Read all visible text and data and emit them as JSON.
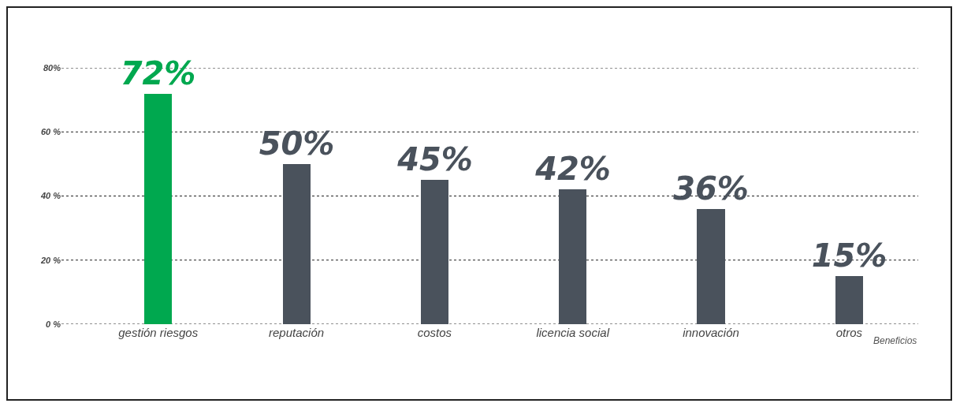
{
  "chart_data": {
    "type": "bar",
    "xlabel": "Beneficios",
    "categories": [
      "gestión riesgos",
      "reputación",
      "costos",
      "licencia social",
      "innovación",
      "otros"
    ],
    "values": [
      72,
      50,
      45,
      42,
      36,
      15
    ],
    "colors": [
      "#00a84f",
      "#4a525c",
      "#4a525c",
      "#4a525c",
      "#4a525c",
      "#4a525c"
    ],
    "value_labels": [
      "72%",
      "50%",
      "45%",
      "42%",
      "36%",
      "15%"
    ],
    "ylim": [
      0,
      80
    ],
    "yticks": [
      {
        "value": 0,
        "label": "0 %"
      },
      {
        "value": 20,
        "label": "20 %"
      },
      {
        "value": 40,
        "label": "40 %"
      },
      {
        "value": 60,
        "label": "60 %"
      },
      {
        "value": 80,
        "label": "80%"
      }
    ],
    "grid": "y"
  }
}
